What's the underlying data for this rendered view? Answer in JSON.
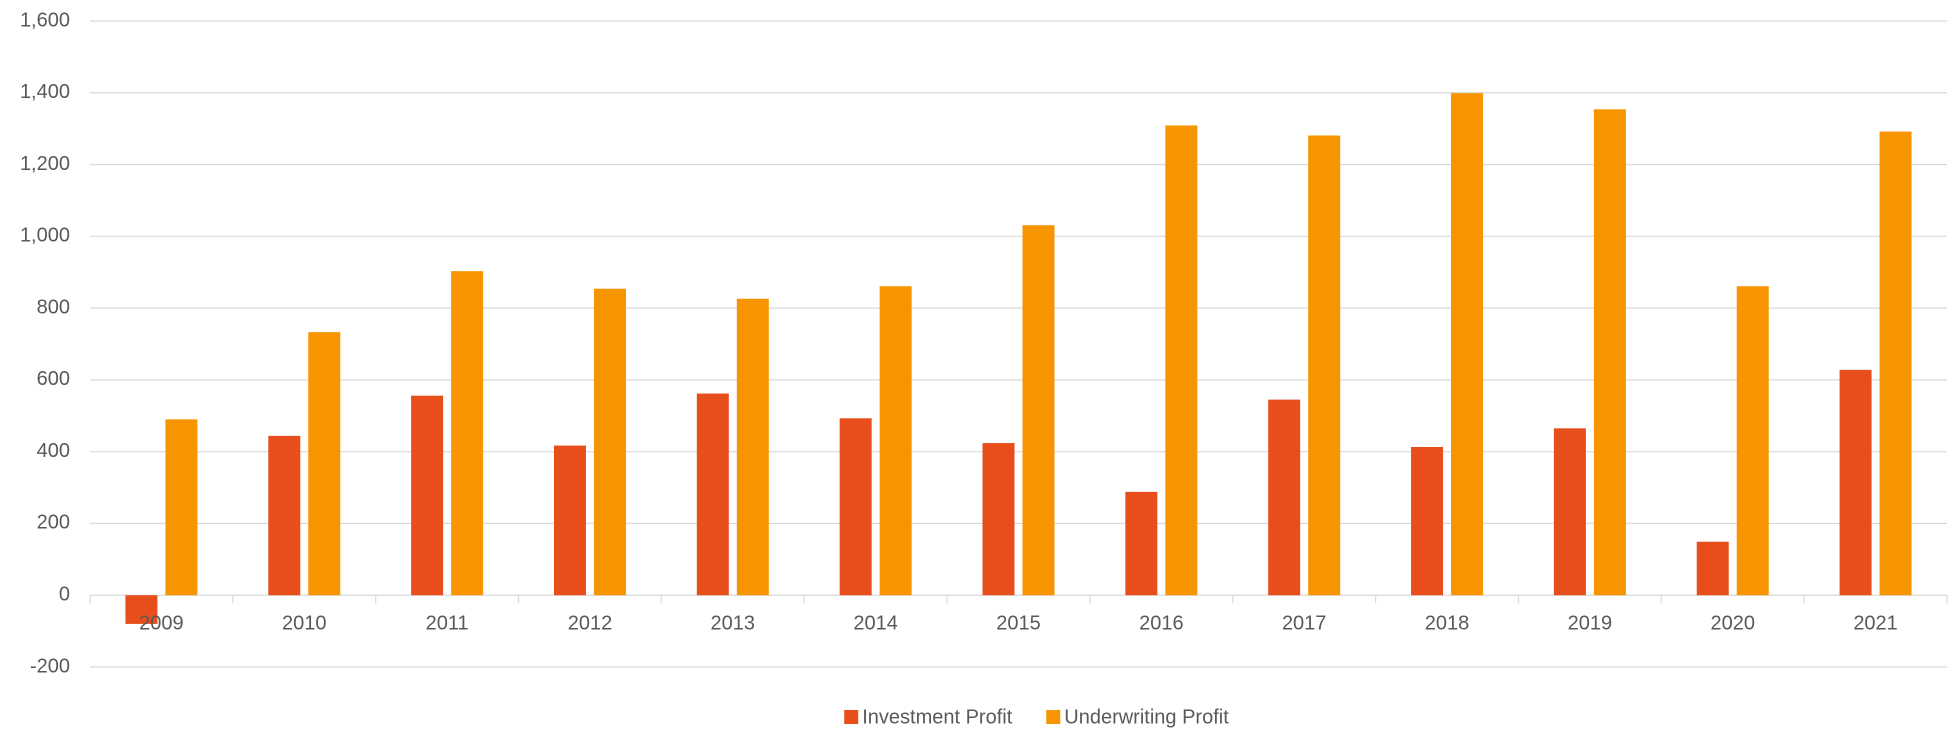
{
  "chart_data": {
    "type": "bar",
    "categories": [
      "2009",
      "2010",
      "2011",
      "2012",
      "2013",
      "2014",
      "2015",
      "2016",
      "2017",
      "2018",
      "2019",
      "2020",
      "2021"
    ],
    "series": [
      {
        "name": "Investment Profit",
        "color": "#e84e1b",
        "values": [
          -80,
          444,
          556,
          417,
          562,
          493,
          424,
          288,
          545,
          413,
          465,
          149,
          628
        ]
      },
      {
        "name": "Underwriting Profit",
        "color": "#f79500",
        "values": [
          490,
          733,
          903,
          854,
          826,
          861,
          1031,
          1309,
          1281,
          1399,
          1354,
          861,
          1292
        ]
      }
    ],
    "ylim": [
      -200,
      1600
    ],
    "yticks": [
      -200,
      0,
      200,
      400,
      600,
      800,
      {
        "value": 1000,
        "label": "1,000"
      },
      {
        "value": 1200,
        "label": "1,200"
      },
      {
        "value": 1400,
        "label": "1,400"
      },
      {
        "value": 1600,
        "label": "1,600"
      }
    ],
    "grid": true,
    "legend": "bottom"
  }
}
